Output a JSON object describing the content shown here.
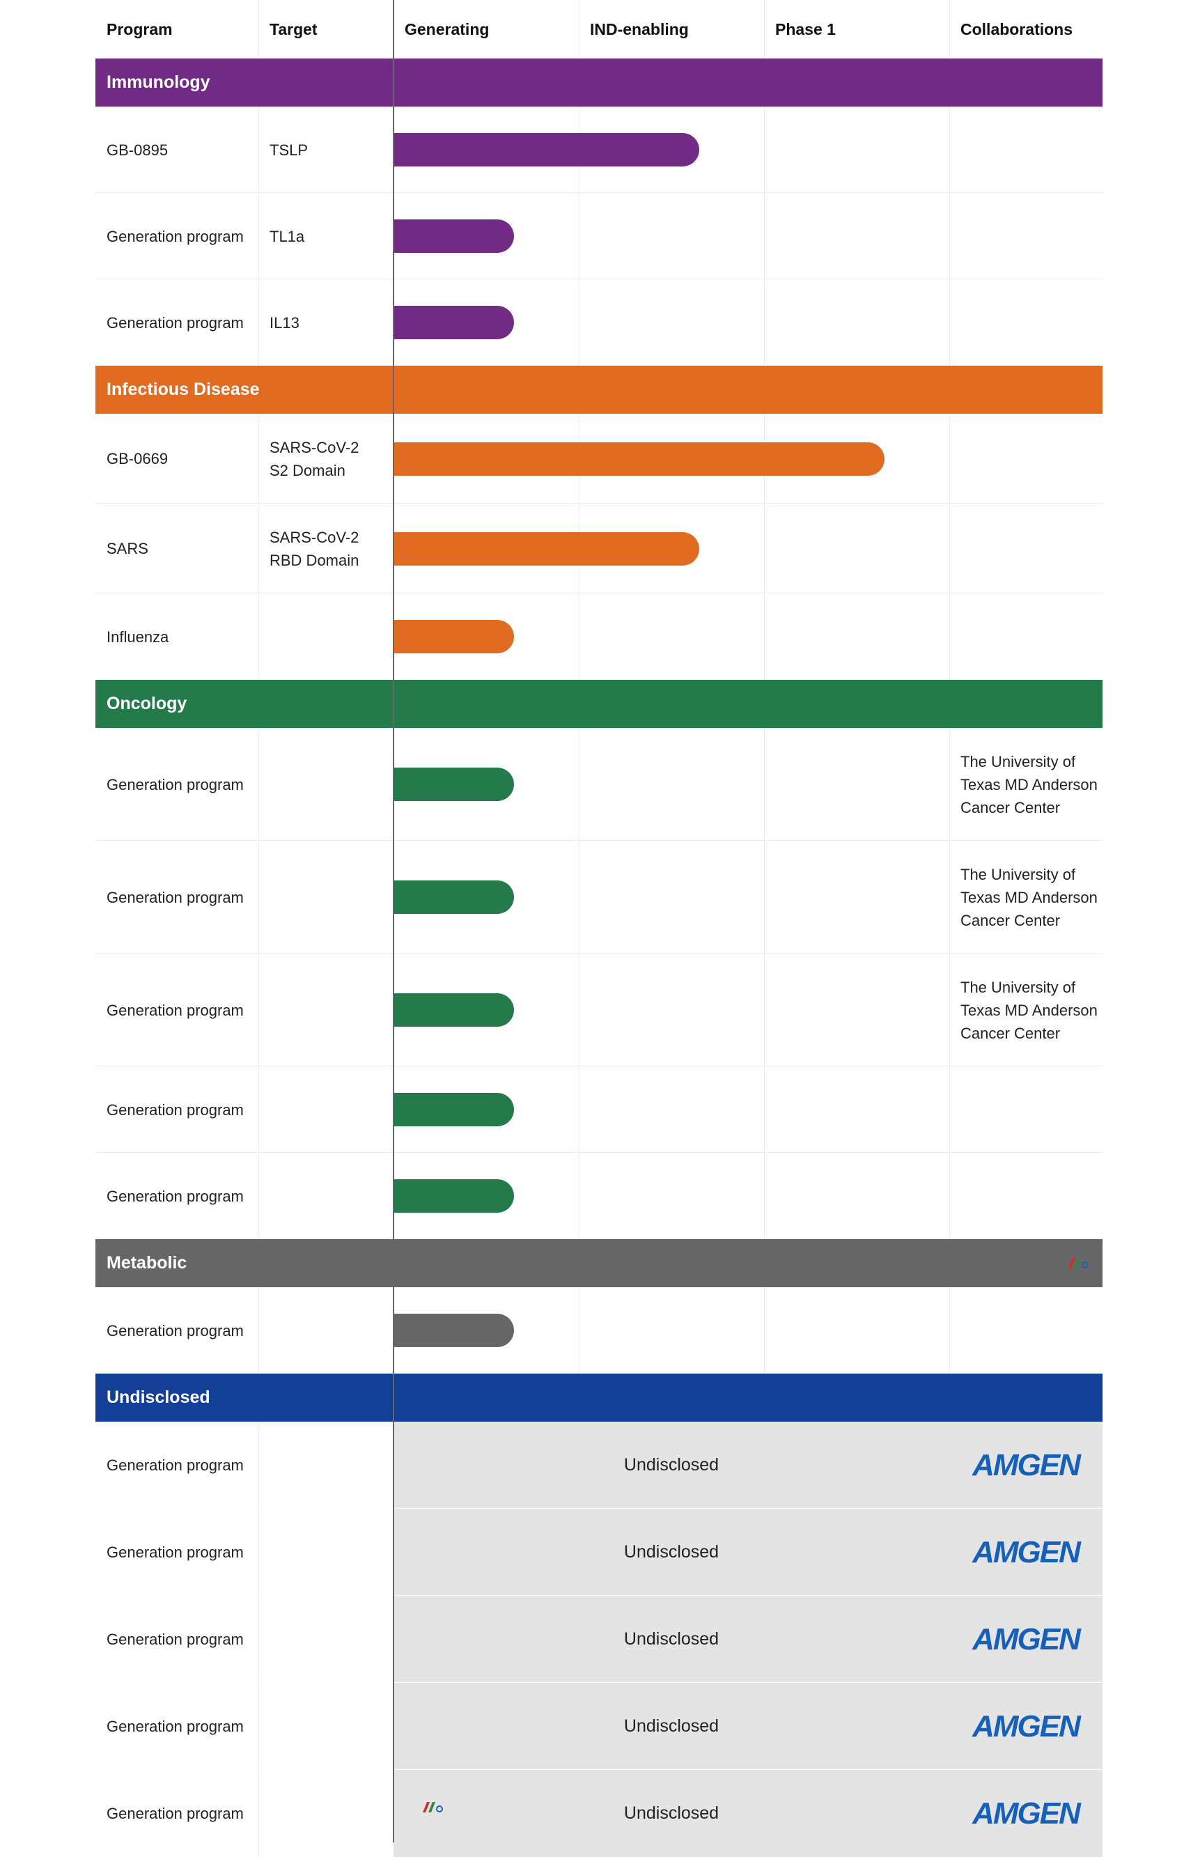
{
  "chart_data": {
    "type": "table",
    "columns": [
      "Program",
      "Target",
      "Generating",
      "IND-enabling",
      "Phase 1",
      "Collaborations"
    ],
    "stages": [
      "Generating",
      "IND-enabling",
      "Phase 1"
    ],
    "categories": [
      {
        "name": "Immunology",
        "color": "#722b84",
        "rows": [
          {
            "program": "GB-0895",
            "target": "TSLP",
            "stage_progress": 1.65,
            "collaboration": ""
          },
          {
            "program": "Generation program",
            "target": "TL1a",
            "stage_progress": 0.65,
            "collaboration": ""
          },
          {
            "program": "Generation program",
            "target": "IL13",
            "stage_progress": 0.65,
            "collaboration": ""
          }
        ]
      },
      {
        "name": "Infectious Disease",
        "color": "#e06b21",
        "rows": [
          {
            "program": "GB-0669",
            "target": "SARS-CoV-2\nS2 Domain",
            "stage_progress": 2.65,
            "collaboration": ""
          },
          {
            "program": "SARS",
            "target": "SARS-CoV-2\nRBD Domain",
            "stage_progress": 1.65,
            "collaboration": ""
          },
          {
            "program": "Influenza",
            "target": "",
            "stage_progress": 0.65,
            "collaboration": ""
          }
        ]
      },
      {
        "name": "Oncology",
        "color": "#247a4b",
        "rows": [
          {
            "program": "Generation program",
            "target": "",
            "stage_progress": 0.65,
            "collaboration": "The University of\nTexas MD Anderson\nCancer Center"
          },
          {
            "program": "Generation program",
            "target": "",
            "stage_progress": 0.65,
            "collaboration": "The University of\nTexas MD Anderson\nCancer Center"
          },
          {
            "program": "Generation program",
            "target": "",
            "stage_progress": 0.65,
            "collaboration": "The University of\nTexas MD Anderson\nCancer Center"
          },
          {
            "program": "Generation program",
            "target": "",
            "stage_progress": 0.65,
            "collaboration": ""
          },
          {
            "program": "Generation program",
            "target": "",
            "stage_progress": 0.65,
            "collaboration": ""
          }
        ]
      },
      {
        "name": "Metabolic",
        "color": "#666666",
        "rows": [
          {
            "program": "Generation program",
            "target": "",
            "stage_progress": 0.65,
            "collaboration": ""
          }
        ]
      },
      {
        "name": "Undisclosed",
        "color": "#143f96",
        "rows": [
          {
            "program": "Generation program",
            "target": "",
            "stage_text": "Undisclosed",
            "collaboration_logo": "AMGEN"
          },
          {
            "program": "Generation program",
            "target": "",
            "stage_text": "Undisclosed",
            "collaboration_logo": "AMGEN"
          },
          {
            "program": "Generation program",
            "target": "",
            "stage_text": "Undisclosed",
            "collaboration_logo": "AMGEN"
          },
          {
            "program": "Generation program",
            "target": "",
            "stage_text": "Undisclosed",
            "collaboration_logo": "AMGEN"
          },
          {
            "program": "Generation program",
            "target": "",
            "stage_text": "Undisclosed",
            "collaboration_logo": "AMGEN"
          }
        ]
      }
    ]
  },
  "icons": [
    "watermark-logo-icon",
    "amgen-logo"
  ]
}
